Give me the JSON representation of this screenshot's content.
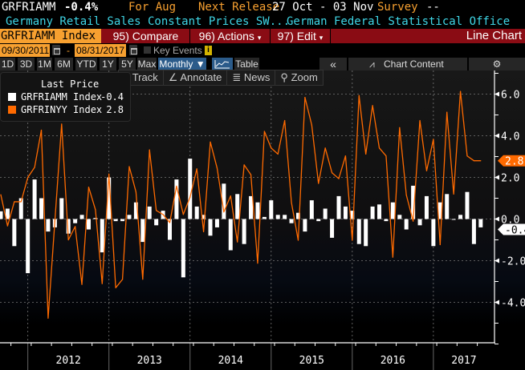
{
  "header": {
    "ticker": "GRFRIAMM",
    "change": "-0.4%",
    "period": "For Aug",
    "next_release_label": "Next Release",
    "next_release": "27 Oct - 03 Nov",
    "survey_label": "Survey",
    "survey": "--",
    "description": "Germany Retail Sales Constant Prices SW...",
    "source": "German Federal Statistical Office"
  },
  "menubar": {
    "index": "GRFRIAMM Index",
    "compare": "95) Compare",
    "actions": "96) Actions",
    "edit": "97) Edit",
    "chart_type": "Line Chart"
  },
  "dates": {
    "start": "09/30/2011",
    "separator": "-",
    "end": "08/31/2017",
    "key_events": "Key Events",
    "info": "i"
  },
  "ranges": [
    "1D",
    "3D",
    "1M",
    "6M",
    "YTD",
    "1Y",
    "5Y",
    "Max"
  ],
  "periodicity": "Monthly ▼",
  "table_label": "Table",
  "collapse": "«",
  "chart_content": "Chart Content",
  "tools": {
    "track": "Track",
    "annotate": "Annotate",
    "news": "News",
    "zoom": "Zoom"
  },
  "legend": {
    "title": "Last Price",
    "items": [
      {
        "name": "GRFRIAMM Index",
        "value": "-0.4",
        "color": "#ffffff"
      },
      {
        "name": "GRFRINYY Index",
        "value": "2.8",
        "color": "#ff6a00"
      }
    ]
  },
  "chart_data": {
    "type": "bar+line",
    "x_start": "2011-09",
    "x_end": "2017-08",
    "frequency": "monthly",
    "x_tick_labels": [
      "2012",
      "2013",
      "2014",
      "2015",
      "2016",
      "2017"
    ],
    "y_tick_labels": [
      "6.0",
      "4.0",
      "2.0",
      "0.0",
      "-2.0",
      "-4.0"
    ],
    "ylim": [
      -6.0,
      7.0
    ],
    "grid": true,
    "legend_position": "top-left",
    "series": [
      {
        "name": "GRFRIAMM Index",
        "type": "bar",
        "color": "#ffffff",
        "last": "-0.4",
        "values": [
          0.37,
          0.5,
          -1.3,
          1.0,
          -2.6,
          1.9,
          1.0,
          -0.6,
          -0.4,
          1.0,
          -0.7,
          -0.2,
          0.2,
          -0.5,
          0.05,
          -1.6,
          2.0,
          -0.1,
          -0.1,
          0.2,
          0.8,
          -1.1,
          0.6,
          -0.3,
          0.4,
          -1.0,
          1.9,
          -2.8,
          2.9,
          0.6,
          0.2,
          -0.8,
          -0.4,
          1.7,
          -1.5,
          1.2,
          -1.2,
          1.1,
          0.8,
          0.1,
          0.9,
          0.2,
          0.2,
          -0.2,
          0.3,
          -0.6,
          0.9,
          -0.1,
          0.5,
          -0.9,
          1.1,
          0.6,
          0.4,
          -1.2,
          -1.3,
          0.6,
          0.7,
          -0.1,
          0.8,
          0.2,
          -0.5,
          1.6,
          -0.3,
          1.1,
          -1.3,
          0.8,
          1.2,
          0.0,
          0.2,
          1.3,
          -1.2,
          -0.4
        ]
      },
      {
        "name": "GRFRINYY Index",
        "type": "line",
        "color": "#ff6a00",
        "last": "2.8",
        "values": [
          1.17,
          -0.33,
          0.83,
          0.83,
          2.0,
          2.48,
          4.27,
          -4.76,
          -0.1,
          4.56,
          -1.0,
          -0.36,
          -3.14,
          1.53,
          0.45,
          -3.1,
          2.16,
          -3.3,
          -2.9,
          2.52,
          1.3,
          -2.89,
          3.32,
          0.41,
          0.22,
          -0.17,
          1.58,
          0.22,
          1.05,
          2.41,
          -0.61,
          3.7,
          2.45,
          0.34,
          1.11,
          -1.1,
          2.6,
          2.13,
          -2.12,
          4.21,
          3.41,
          3.12,
          4.73,
          0.79,
          -1.02,
          5.84,
          4.52,
          1.71,
          3.41,
          2.22,
          1.94,
          3.03,
          -1.02,
          5.93,
          3.12,
          5.45,
          3.41,
          3.03,
          -1.83,
          4.39,
          1.15,
          -0.1,
          4.73,
          2.32,
          3.83,
          -1.23,
          5.13,
          1.2,
          6.13,
          3.03,
          2.8,
          2.8
        ]
      }
    ]
  }
}
